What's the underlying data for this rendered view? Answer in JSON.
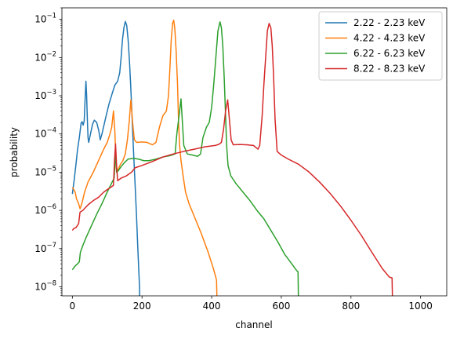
{
  "chart_data": {
    "type": "line",
    "xlabel": "channel",
    "ylabel": "probability",
    "xlim": [
      -30,
      1075
    ],
    "ylim": [
      5.8e-09,
      0.2
    ],
    "yscale": "log",
    "xticks": [
      0,
      200,
      400,
      600,
      800,
      1000
    ],
    "yticks": [
      1e-08,
      1e-07,
      1e-06,
      1e-05,
      0.0001,
      0.001,
      0.01,
      0.1
    ],
    "ytick_labels": [
      {
        "base": "10",
        "exp": "−8"
      },
      {
        "base": "10",
        "exp": "−7"
      },
      {
        "base": "10",
        "exp": "−6"
      },
      {
        "base": "10",
        "exp": "−5"
      },
      {
        "base": "10",
        "exp": "−4"
      },
      {
        "base": "10",
        "exp": "−3"
      },
      {
        "base": "10",
        "exp": "−2"
      },
      {
        "base": "10",
        "exp": "−1"
      }
    ],
    "grid": false,
    "legend_position": "top-right",
    "series": [
      {
        "name": "2.22 - 2.23 keV",
        "color": "#1f77b4",
        "points": [
          [
            0,
            2.7e-06
          ],
          [
            5,
            6e-06
          ],
          [
            10,
            1.5e-05
          ],
          [
            15,
            4e-05
          ],
          [
            20,
            8e-05
          ],
          [
            25,
            0.00019
          ],
          [
            28,
            0.00021
          ],
          [
            31,
            0.00017
          ],
          [
            34,
            0.00022
          ],
          [
            37,
            0.001
          ],
          [
            39,
            0.0024
          ],
          [
            41,
            0.001
          ],
          [
            43,
            0.00025
          ],
          [
            45,
            8e-05
          ],
          [
            47,
            6e-05
          ],
          [
            52,
            0.0001
          ],
          [
            58,
            0.00018
          ],
          [
            63,
            0.00023
          ],
          [
            70,
            0.0002
          ],
          [
            76,
            0.00012
          ],
          [
            80,
            7e-05
          ],
          [
            85,
            0.0001
          ],
          [
            95,
            0.00025
          ],
          [
            105,
            0.0006
          ],
          [
            115,
            0.0012
          ],
          [
            122,
            0.0019
          ],
          [
            130,
            0.0024
          ],
          [
            136,
            0.004
          ],
          [
            140,
            0.01
          ],
          [
            144,
            0.03
          ],
          [
            148,
            0.06
          ],
          [
            152,
            0.088
          ],
          [
            156,
            0.07
          ],
          [
            160,
            0.03
          ],
          [
            164,
            0.008
          ],
          [
            168,
            0.0015
          ],
          [
            172,
            0.0002
          ],
          [
            176,
            3e-05
          ],
          [
            180,
            5e-06
          ],
          [
            184,
            8e-07
          ],
          [
            188,
            1e-07
          ],
          [
            192,
            1.5e-08
          ],
          [
            193,
            9e-09
          ],
          [
            193,
            5.8e-09
          ]
        ]
      },
      {
        "name": "4.22 - 4.23 keV",
        "color": "#ff7f0e",
        "points": [
          [
            0,
            4e-06
          ],
          [
            4,
            3.5e-06
          ],
          [
            8,
            3e-06
          ],
          [
            12,
            2e-06
          ],
          [
            18,
            1.5e-06
          ],
          [
            22,
            1.1e-06
          ],
          [
            28,
            1.6e-06
          ],
          [
            35,
            3e-06
          ],
          [
            45,
            5.5e-06
          ],
          [
            60,
            1e-05
          ],
          [
            75,
            2e-05
          ],
          [
            90,
            4e-05
          ],
          [
            100,
            6e-05
          ],
          [
            108,
            0.0001
          ],
          [
            113,
            0.00015
          ],
          [
            118,
            0.0004
          ],
          [
            122,
            0.00012
          ],
          [
            126,
            1.2e-05
          ],
          [
            129,
            1.1e-05
          ],
          [
            132,
            1.2e-05
          ],
          [
            138,
            1.6e-05
          ],
          [
            145,
            2e-05
          ],
          [
            152,
            3e-05
          ],
          [
            158,
            7e-05
          ],
          [
            163,
            0.0002
          ],
          [
            168,
            0.00078
          ],
          [
            173,
            0.0002
          ],
          [
            178,
            7e-05
          ],
          [
            185,
            6e-05
          ],
          [
            200,
            6.2e-05
          ],
          [
            215,
            6e-05
          ],
          [
            230,
            5.2e-05
          ],
          [
            240,
            6e-05
          ],
          [
            250,
            0.00015
          ],
          [
            260,
            0.0003
          ],
          [
            270,
            0.0004
          ],
          [
            276,
            0.001
          ],
          [
            280,
            0.005
          ],
          [
            284,
            0.03
          ],
          [
            288,
            0.08
          ],
          [
            291,
            0.095
          ],
          [
            294,
            0.06
          ],
          [
            298,
            0.015
          ],
          [
            302,
            0.002
          ],
          [
            305,
            0.0002
          ],
          [
            308,
            5e-05
          ],
          [
            312,
            2e-05
          ],
          [
            318,
            8e-06
          ],
          [
            325,
            3e-06
          ],
          [
            335,
            1.5e-06
          ],
          [
            350,
            7e-07
          ],
          [
            370,
            2.5e-07
          ],
          [
            390,
            8e-08
          ],
          [
            405,
            3e-08
          ],
          [
            414,
            1.5e-08
          ],
          [
            415,
            5.8e-09
          ]
        ]
      },
      {
        "name": "6.22 - 6.23 keV",
        "color": "#2ca02c",
        "points": [
          [
            0,
            2.8e-08
          ],
          [
            8,
            3.5e-08
          ],
          [
            15,
            4e-08
          ],
          [
            20,
            4.5e-08
          ],
          [
            23,
            8e-08
          ],
          [
            30,
            1.2e-07
          ],
          [
            40,
            2e-07
          ],
          [
            55,
            4e-07
          ],
          [
            70,
            8e-07
          ],
          [
            85,
            1.5e-06
          ],
          [
            100,
            3e-06
          ],
          [
            112,
            5e-06
          ],
          [
            120,
            7e-06
          ],
          [
            124,
            3.5e-05
          ],
          [
            127,
            1e-05
          ],
          [
            132,
            1.1e-05
          ],
          [
            140,
            1.4e-05
          ],
          [
            150,
            1.8e-05
          ],
          [
            160,
            2.2e-05
          ],
          [
            175,
            2.3e-05
          ],
          [
            190,
            2.2e-05
          ],
          [
            205,
            2e-05
          ],
          [
            220,
            2e-05
          ],
          [
            240,
            2.2e-05
          ],
          [
            260,
            2.5e-05
          ],
          [
            280,
            2.7e-05
          ],
          [
            295,
            3e-05
          ],
          [
            300,
            0.0001
          ],
          [
            304,
            0.0002
          ],
          [
            308,
            0.0004
          ],
          [
            312,
            0.00083
          ],
          [
            316,
            0.0002
          ],
          [
            320,
            5e-05
          ],
          [
            330,
            3e-05
          ],
          [
            345,
            2.8e-05
          ],
          [
            360,
            2.6e-05
          ],
          [
            368,
            3e-05
          ],
          [
            375,
            8e-05
          ],
          [
            385,
            0.00015
          ],
          [
            393,
            0.0002
          ],
          [
            400,
            0.0005
          ],
          [
            406,
            0.002
          ],
          [
            412,
            0.01
          ],
          [
            418,
            0.05
          ],
          [
            424,
            0.086
          ],
          [
            428,
            0.06
          ],
          [
            432,
            0.02
          ],
          [
            436,
            0.003
          ],
          [
            440,
            0.0003
          ],
          [
            443,
            5e-05
          ],
          [
            447,
            1.5e-05
          ],
          [
            455,
            8e-06
          ],
          [
            470,
            5e-06
          ],
          [
            490,
            3e-06
          ],
          [
            510,
            1.8e-06
          ],
          [
            530,
            1e-06
          ],
          [
            550,
            6e-07
          ],
          [
            570,
            3e-07
          ],
          [
            590,
            1.5e-07
          ],
          [
            610,
            7e-08
          ],
          [
            630,
            4e-08
          ],
          [
            645,
            2.6e-08
          ],
          [
            648,
            2.5e-08
          ],
          [
            649,
            5.8e-09
          ]
        ]
      },
      {
        "name": "8.22 - 8.23 keV",
        "color": "#d62728",
        "points": [
          [
            0,
            3e-07
          ],
          [
            5,
            3.4e-07
          ],
          [
            10,
            3.5e-07
          ],
          [
            18,
            4.5e-07
          ],
          [
            22,
            9e-07
          ],
          [
            30,
            1e-06
          ],
          [
            45,
            1.4e-06
          ],
          [
            60,
            1.8e-06
          ],
          [
            75,
            2.2e-06
          ],
          [
            90,
            3e-06
          ],
          [
            100,
            3.5e-06
          ],
          [
            110,
            4e-06
          ],
          [
            118,
            4.5e-06
          ],
          [
            121,
            2e-05
          ],
          [
            124,
            5.5e-05
          ],
          [
            127,
            1.5e-05
          ],
          [
            130,
            6e-06
          ],
          [
            140,
            7e-06
          ],
          [
            155,
            8e-06
          ],
          [
            170,
            1e-05
          ],
          [
            180,
            1.3e-05
          ],
          [
            200,
            1.5e-05
          ],
          [
            230,
            1.9e-05
          ],
          [
            260,
            2.5e-05
          ],
          [
            290,
            3e-05
          ],
          [
            320,
            3.5e-05
          ],
          [
            350,
            4e-05
          ],
          [
            380,
            4.6e-05
          ],
          [
            410,
            5e-05
          ],
          [
            420,
            5.3e-05
          ],
          [
            428,
            6e-05
          ],
          [
            434,
            0.00013
          ],
          [
            440,
            0.0004
          ],
          [
            446,
            0.00078
          ],
          [
            450,
            0.0003
          ],
          [
            456,
            7e-05
          ],
          [
            462,
            5.2e-05
          ],
          [
            480,
            5.3e-05
          ],
          [
            500,
            5.2e-05
          ],
          [
            520,
            5e-05
          ],
          [
            533,
            4e-05
          ],
          [
            538,
            5e-05
          ],
          [
            545,
            0.0003
          ],
          [
            550,
            0.002
          ],
          [
            555,
            0.01
          ],
          [
            560,
            0.05
          ],
          [
            565,
            0.078
          ],
          [
            570,
            0.06
          ],
          [
            574,
            0.02
          ],
          [
            578,
            0.003
          ],
          [
            582,
            0.00025
          ],
          [
            588,
            3.5e-05
          ],
          [
            600,
            2.8e-05
          ],
          [
            620,
            2.2e-05
          ],
          [
            650,
            1.6e-05
          ],
          [
            680,
            1e-05
          ],
          [
            710,
            5.5e-06
          ],
          [
            740,
            2.8e-06
          ],
          [
            770,
            1.3e-06
          ],
          [
            800,
            5.5e-07
          ],
          [
            830,
            2.2e-07
          ],
          [
            860,
            8e-08
          ],
          [
            890,
            3e-08
          ],
          [
            910,
            1.8e-08
          ],
          [
            918,
            1.7e-08
          ],
          [
            919,
            5.8e-09
          ]
        ]
      }
    ]
  }
}
